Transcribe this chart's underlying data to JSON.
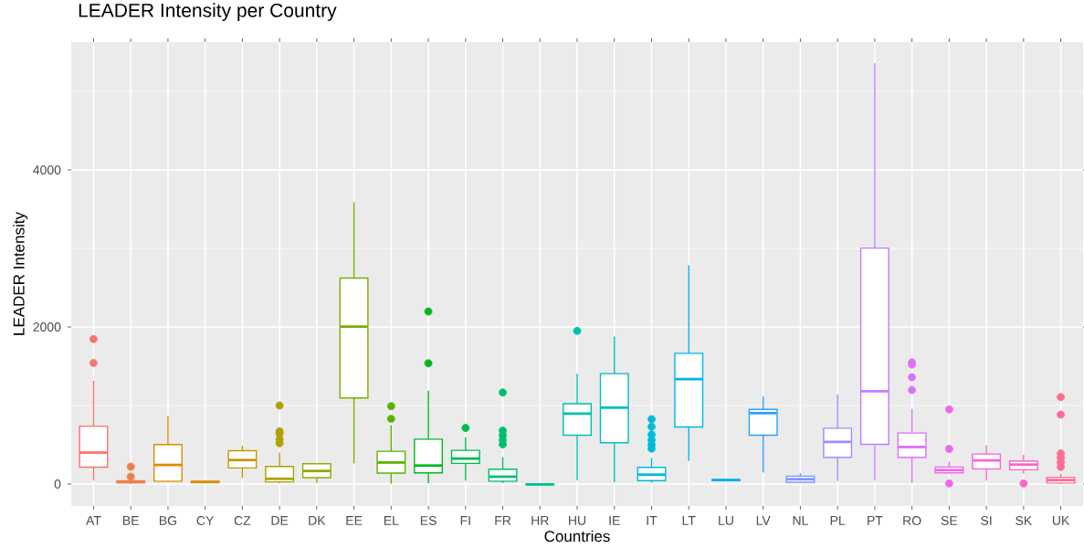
{
  "chart_data": {
    "type": "box",
    "title": "LEADER Intensity per Country",
    "xlabel": "Countries",
    "ylabel": "LEADER Intensity",
    "categories": [
      "AT",
      "BE",
      "BG",
      "CY",
      "CZ",
      "DE",
      "DK",
      "EE",
      "EL",
      "ES",
      "FI",
      "FR",
      "HR",
      "HU",
      "IE",
      "IT",
      "LT",
      "LU",
      "LV",
      "NL",
      "PL",
      "PT",
      "RO",
      "SE",
      "SI",
      "SK",
      "UK"
    ],
    "boxes": [
      {
        "low": 42,
        "q1": 215,
        "median": 400,
        "q3": 737,
        "high": 1316,
        "outliers": [
          1541,
          1846
        ]
      },
      {
        "low": 0,
        "q1": 15,
        "median": 25,
        "q3": 40,
        "high": 60,
        "outliers": [
          93,
          220
        ]
      },
      {
        "low": 23,
        "q1": 35,
        "median": 243,
        "q3": 502,
        "high": 865
      },
      {
        "low": 20,
        "q1": 20,
        "median": 25,
        "q3": 35,
        "high": 35
      },
      {
        "low": 77,
        "q1": 204,
        "median": 305,
        "q3": 424,
        "high": 487
      },
      {
        "low": 10,
        "q1": 27,
        "median": 66,
        "q3": 223,
        "high": 401,
        "outliers": [
          520,
          570,
          640,
          670,
          1000
        ]
      },
      {
        "low": 15,
        "q1": 81,
        "median": 166,
        "q3": 258,
        "high": 265
      },
      {
        "low": 262,
        "q1": 1096,
        "median": 2005,
        "q3": 2622,
        "high": 3588
      },
      {
        "low": 5,
        "q1": 139,
        "median": 274,
        "q3": 417,
        "high": 749,
        "outliers": [
          830,
          992
        ]
      },
      {
        "low": 12,
        "q1": 142,
        "median": 235,
        "q3": 571,
        "high": 1189,
        "outliers": [
          1537,
          2197
        ]
      },
      {
        "low": 42,
        "q1": 262,
        "median": 324,
        "q3": 428,
        "high": 594,
        "outliers": [
          714
        ]
      },
      {
        "low": 12,
        "q1": 35,
        "median": 93,
        "q3": 189,
        "high": 340,
        "outliers": [
          505,
          560,
          620,
          680,
          1166
        ]
      },
      {
        "low": -15,
        "q1": -8,
        "median": -5,
        "q3": 0,
        "high": 5
      },
      {
        "low": 50,
        "q1": 621,
        "median": 896,
        "q3": 1023,
        "high": 1405,
        "outliers": [
          1950
        ]
      },
      {
        "low": 23,
        "q1": 525,
        "median": 973,
        "q3": 1405,
        "high": 1877
      },
      {
        "low": 15,
        "q1": 42,
        "median": 119,
        "q3": 212,
        "high": 332,
        "outliers": [
          450,
          500,
          560,
          630,
          730,
          826
        ]
      },
      {
        "low": 293,
        "q1": 726,
        "median": 1336,
        "q3": 1664,
        "high": 2785
      },
      {
        "low": 40,
        "q1": 45,
        "median": 50,
        "q3": 55,
        "high": 60
      },
      {
        "low": 146,
        "q1": 621,
        "median": 903,
        "q3": 950,
        "high": 1116
      },
      {
        "low": 15,
        "q1": 23,
        "median": 61,
        "q3": 100,
        "high": 139
      },
      {
        "low": 38,
        "q1": 340,
        "median": 536,
        "q3": 710,
        "high": 1143
      },
      {
        "low": 42,
        "q1": 505,
        "median": 1182,
        "q3": 3005,
        "high": 5360
      },
      {
        "low": 12,
        "q1": 340,
        "median": 471,
        "q3": 649,
        "high": 957,
        "outliers": [
          1197,
          1359,
          1521,
          1548
        ]
      },
      {
        "low": 139,
        "q1": 142,
        "median": 177,
        "q3": 216,
        "high": 285,
        "outliers": [
          7,
          447,
          950
        ]
      },
      {
        "low": 42,
        "q1": 193,
        "median": 301,
        "q3": 382,
        "high": 494
      },
      {
        "low": 131,
        "q1": 181,
        "median": 247,
        "q3": 293,
        "high": 371,
        "outliers": [
          7
        ]
      },
      {
        "low": 0,
        "q1": 12,
        "median": 50,
        "q3": 85,
        "high": 131,
        "outliers": [
          216,
          274,
          332,
          390,
          884,
          1108
        ]
      }
    ],
    "colors": [
      "#F8766D",
      "#EF7F4A",
      "#E28A00",
      "#D39200",
      "#C29A00",
      "#AFA100",
      "#96A900",
      "#7CAE00",
      "#5BB300",
      "#00B81F",
      "#00BB4E",
      "#00BE70",
      "#00C094",
      "#00C0AF",
      "#00BFC4",
      "#00BCD8",
      "#00B6EB",
      "#00ADFA",
      "#2CA1FF",
      "#7A97FF",
      "#A58AFF",
      "#C77CFF",
      "#DF70F8",
      "#EF67EB",
      "#FA62DB",
      "#FF61C9",
      "#FF6C91"
    ],
    "ylim": [
      -280,
      5630
    ],
    "yticks": [
      0,
      {
        "value": 1000,
        "label": null
      },
      2000,
      {
        "value": 3000,
        "label": null
      },
      4000,
      {
        "value": 5000,
        "label": null
      }
    ],
    "grid": true
  }
}
